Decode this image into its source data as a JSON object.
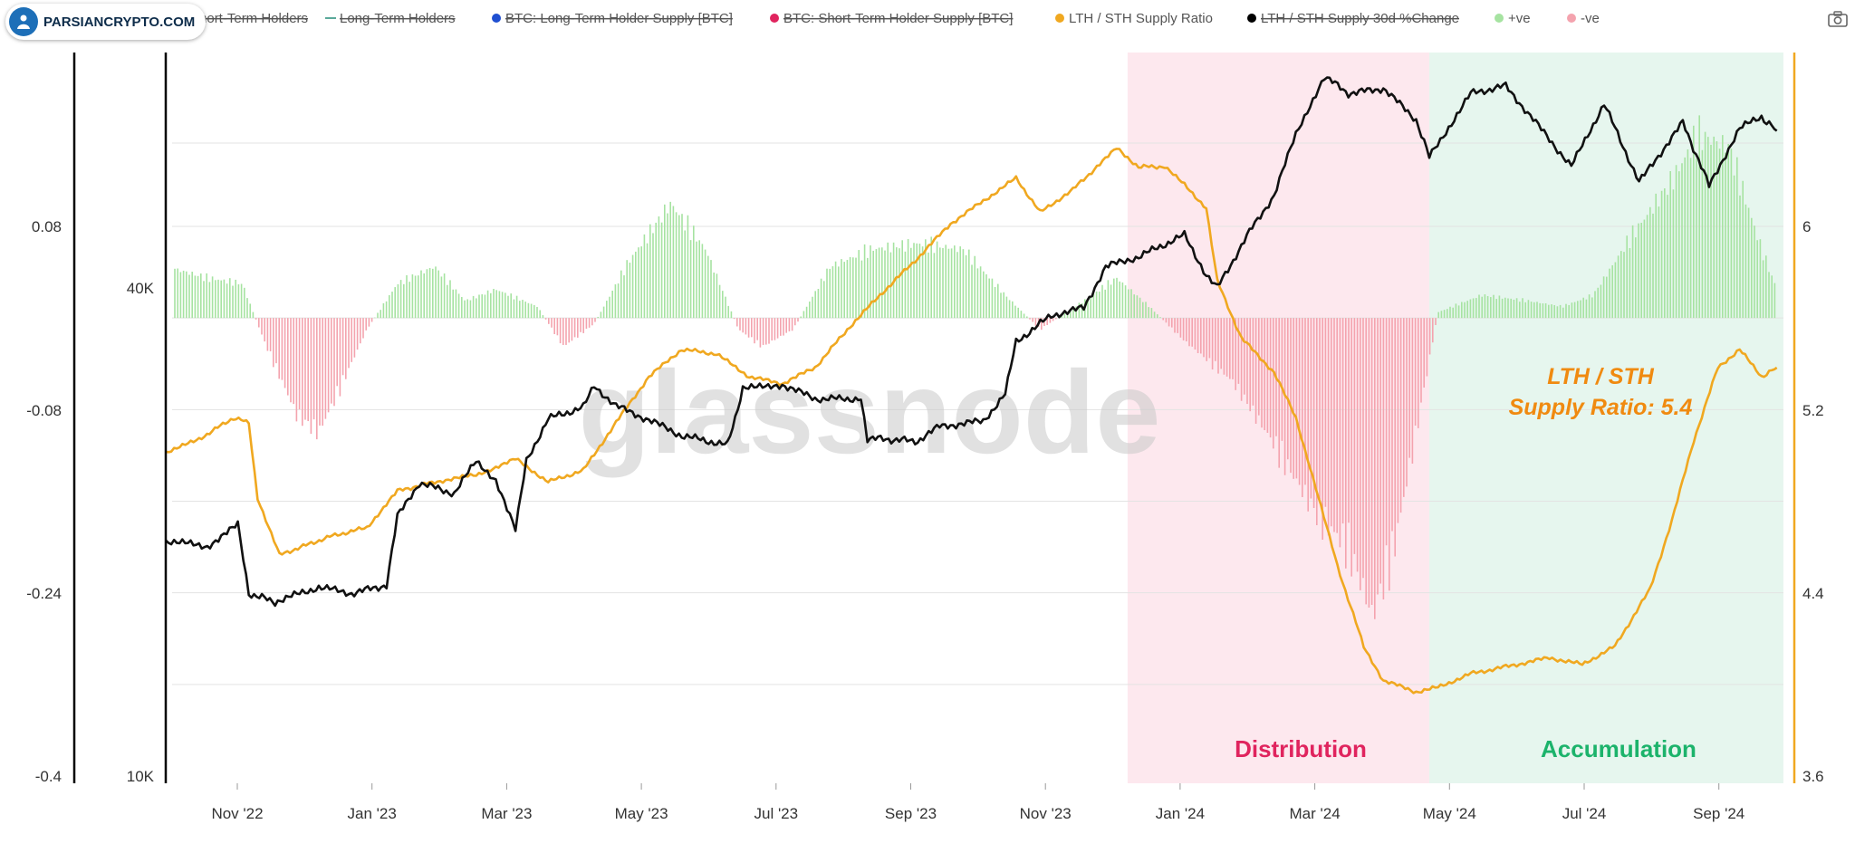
{
  "brand": {
    "label": "PARSIANCRYPTO.COM"
  },
  "watermark": "glassnode",
  "legend": [
    {
      "label": "Short-Term Holders",
      "color": "#cc6677",
      "struck": true,
      "marker": "none"
    },
    {
      "label": "Long-Term Holders",
      "color": "#5aa99a",
      "struck": true,
      "marker": "line"
    },
    {
      "label": "BTC: Long-Term Holder Supply [BTC]",
      "color": "#1f4fd1",
      "struck": true,
      "marker": "dot"
    },
    {
      "label": "BTC: Short-Term Holder Supply [BTC]",
      "color": "#e0245e",
      "struck": true,
      "marker": "dot"
    },
    {
      "label": "LTH / STH Supply Ratio",
      "color": "#f0a820",
      "struck": false,
      "marker": "dot"
    },
    {
      "label": "LTH / STH Supply 30d %Change",
      "color": "#000000",
      "struck": true,
      "marker": "dot"
    },
    {
      "label": "+ve",
      "color": "#a6e3a1",
      "struck": false,
      "marker": "dot"
    },
    {
      "label": "-ve",
      "color": "#f4a3ae",
      "struck": false,
      "marker": "dot"
    }
  ],
  "annotations": {
    "ratio_label_line1": "LTH / STH",
    "ratio_label_line2": "Supply Ratio: 5.4",
    "distribution": "Distribution",
    "accumulation": "Accumulation"
  },
  "colors": {
    "ratio": "#f0a820",
    "price": "#111111",
    "positive": "#a6e3a1",
    "negative": "#f4a3ae",
    "distribution_bg": "#fde8ee",
    "accumulation_bg": "#e6f6ee",
    "distribution_text": "#e0245e",
    "accumulation_text": "#1cb36b",
    "ratio_text": "#f08a10"
  },
  "chart_data": {
    "type": "line",
    "x_ticks": [
      "Nov '22",
      "Jan '23",
      "Mar '23",
      "May '23",
      "Jul '23",
      "Sep '23",
      "Nov '23",
      "Jan '24",
      "Mar '24",
      "May '24",
      "Jul '24",
      "Sep '24"
    ],
    "x_range": [
      "2022-10-01",
      "2024-10-15"
    ],
    "left_axis_change": {
      "ticks": [
        "0.08",
        "-0.08",
        "-0.24",
        "-0.4"
      ],
      "range": [
        -0.4,
        0.08
      ]
    },
    "left_axis_price": {
      "ticks": [
        "40K",
        "10K"
      ],
      "log_scale": true
    },
    "right_axis_ratio": {
      "ticks": [
        "6",
        "5.2",
        "4.4",
        "3.6"
      ],
      "range": [
        3.6,
        6.8
      ]
    },
    "shaded_regions": [
      {
        "label": "Distribution",
        "from": "2023-12-15",
        "to": "2024-05-01"
      },
      {
        "label": "Accumulation",
        "from": "2024-05-01",
        "to": "2024-10-10"
      }
    ],
    "series": [
      {
        "name": "LTH / STH Supply Ratio",
        "axis": "right",
        "points": [
          [
            "2022-10-01",
            5.05
          ],
          [
            "2022-10-15",
            5.1
          ],
          [
            "2022-11-01",
            5.2
          ],
          [
            "2022-11-08",
            5.18
          ],
          [
            "2022-11-12",
            4.85
          ],
          [
            "2022-11-22",
            4.6
          ],
          [
            "2022-12-15",
            4.68
          ],
          [
            "2023-01-01",
            4.72
          ],
          [
            "2023-01-15",
            4.88
          ],
          [
            "2023-02-01",
            4.92
          ],
          [
            "2023-02-20",
            4.95
          ],
          [
            "2023-03-10",
            5.02
          ],
          [
            "2023-03-25",
            4.92
          ],
          [
            "2023-04-10",
            4.97
          ],
          [
            "2023-04-25",
            5.18
          ],
          [
            "2023-05-10",
            5.38
          ],
          [
            "2023-05-25",
            5.5
          ],
          [
            "2023-06-10",
            5.48
          ],
          [
            "2023-06-25",
            5.38
          ],
          [
            "2023-07-10",
            5.35
          ],
          [
            "2023-07-25",
            5.42
          ],
          [
            "2023-08-10",
            5.6
          ],
          [
            "2023-08-25",
            5.75
          ],
          [
            "2023-09-10",
            5.9
          ],
          [
            "2023-09-25",
            6.05
          ],
          [
            "2023-10-10",
            6.15
          ],
          [
            "2023-10-25",
            6.25
          ],
          [
            "2023-11-05",
            6.1
          ],
          [
            "2023-11-20",
            6.2
          ],
          [
            "2023-12-01",
            6.3
          ],
          [
            "2023-12-10",
            6.38
          ],
          [
            "2023-12-20",
            6.3
          ],
          [
            "2024-01-01",
            6.3
          ],
          [
            "2024-01-10",
            6.22
          ],
          [
            "2024-01-20",
            6.12
          ],
          [
            "2024-01-25",
            5.8
          ],
          [
            "2024-02-05",
            5.55
          ],
          [
            "2024-02-20",
            5.4
          ],
          [
            "2024-03-01",
            5.2
          ],
          [
            "2024-03-10",
            4.9
          ],
          [
            "2024-03-20",
            4.55
          ],
          [
            "2024-04-01",
            4.2
          ],
          [
            "2024-04-10",
            4.05
          ],
          [
            "2024-04-25",
            4.0
          ],
          [
            "2024-05-05",
            4.02
          ],
          [
            "2024-05-20",
            4.08
          ],
          [
            "2024-06-10",
            4.12
          ],
          [
            "2024-06-25",
            4.15
          ],
          [
            "2024-07-10",
            4.12
          ],
          [
            "2024-07-25",
            4.2
          ],
          [
            "2024-08-10",
            4.45
          ],
          [
            "2024-08-20",
            4.75
          ],
          [
            "2024-08-30",
            5.1
          ],
          [
            "2024-09-10",
            5.42
          ],
          [
            "2024-09-20",
            5.5
          ],
          [
            "2024-09-30",
            5.38
          ],
          [
            "2024-10-07",
            5.42
          ]
        ]
      },
      {
        "name": "LTH / STH Supply 30d %Change",
        "axis": "left_price",
        "points": [
          [
            "2022-10-01",
            19500
          ],
          [
            "2022-10-20",
            19200
          ],
          [
            "2022-11-03",
            20400
          ],
          [
            "2022-11-08",
            16800
          ],
          [
            "2022-11-20",
            16400
          ],
          [
            "2022-12-10",
            17100
          ],
          [
            "2022-12-25",
            16800
          ],
          [
            "2023-01-10",
            17200
          ],
          [
            "2023-01-15",
            20900
          ],
          [
            "2023-01-25",
            23000
          ],
          [
            "2023-02-10",
            22300
          ],
          [
            "2023-02-20",
            24500
          ],
          [
            "2023-03-01",
            23200
          ],
          [
            "2023-03-10",
            20100
          ],
          [
            "2023-03-15",
            24500
          ],
          [
            "2023-03-25",
            27600
          ],
          [
            "2023-04-10",
            28500
          ],
          [
            "2023-04-15",
            30300
          ],
          [
            "2023-04-25",
            28600
          ],
          [
            "2023-05-10",
            27500
          ],
          [
            "2023-05-25",
            26300
          ],
          [
            "2023-06-15",
            25600
          ],
          [
            "2023-06-22",
            30000
          ],
          [
            "2023-07-10",
            30400
          ],
          [
            "2023-07-25",
            29200
          ],
          [
            "2023-08-15",
            29200
          ],
          [
            "2023-08-18",
            26100
          ],
          [
            "2023-09-10",
            25900
          ],
          [
            "2023-09-20",
            27000
          ],
          [
            "2023-10-10",
            27400
          ],
          [
            "2023-10-20",
            29600
          ],
          [
            "2023-10-25",
            34300
          ],
          [
            "2023-11-10",
            37000
          ],
          [
            "2023-11-25",
            37800
          ],
          [
            "2023-12-05",
            42500
          ],
          [
            "2023-12-20",
            43700
          ],
          [
            "2024-01-10",
            46500
          ],
          [
            "2024-01-20",
            41500
          ],
          [
            "2024-01-25",
            40000
          ],
          [
            "2024-02-10",
            47500
          ],
          [
            "2024-02-20",
            52000
          ],
          [
            "2024-03-01",
            62000
          ],
          [
            "2024-03-14",
            73000
          ],
          [
            "2024-03-25",
            69500
          ],
          [
            "2024-04-10",
            70500
          ],
          [
            "2024-04-25",
            64500
          ],
          [
            "2024-05-01",
            58000
          ],
          [
            "2024-05-20",
            69500
          ],
          [
            "2024-06-05",
            71000
          ],
          [
            "2024-06-25",
            61000
          ],
          [
            "2024-07-05",
            56500
          ],
          [
            "2024-07-20",
            67500
          ],
          [
            "2024-08-05",
            54000
          ],
          [
            "2024-08-25",
            64000
          ],
          [
            "2024-09-06",
            53500
          ],
          [
            "2024-09-20",
            63000
          ],
          [
            "2024-09-30",
            65000
          ],
          [
            "2024-10-07",
            62500
          ]
        ]
      },
      {
        "name": "+ve / -ve",
        "axis": "left_change",
        "histogram": [
          [
            "2022-10-01",
            0.045
          ],
          [
            "2022-10-20",
            0.035
          ],
          [
            "2022-11-05",
            0.03
          ],
          [
            "2022-11-15",
            -0.02
          ],
          [
            "2022-11-30",
            -0.085
          ],
          [
            "2022-12-10",
            -0.1
          ],
          [
            "2022-12-20",
            -0.06
          ],
          [
            "2023-01-01",
            -0.01
          ],
          [
            "2023-01-15",
            0.03
          ],
          [
            "2023-02-01",
            0.045
          ],
          [
            "2023-02-15",
            0.015
          ],
          [
            "2023-03-01",
            0.025
          ],
          [
            "2023-03-20",
            0.01
          ],
          [
            "2023-04-01",
            -0.025
          ],
          [
            "2023-04-15",
            -0.005
          ],
          [
            "2023-05-01",
            0.05
          ],
          [
            "2023-05-20",
            0.1
          ],
          [
            "2023-06-05",
            0.06
          ],
          [
            "2023-06-20",
            -0.01
          ],
          [
            "2023-07-01",
            -0.025
          ],
          [
            "2023-07-15",
            -0.01
          ],
          [
            "2023-08-01",
            0.045
          ],
          [
            "2023-08-20",
            0.06
          ],
          [
            "2023-09-10",
            0.065
          ],
          [
            "2023-10-01",
            0.06
          ],
          [
            "2023-10-20",
            0.02
          ],
          [
            "2023-11-05",
            -0.01
          ],
          [
            "2023-11-25",
            0.015
          ],
          [
            "2023-12-10",
            0.035
          ],
          [
            "2023-12-25",
            0.01
          ],
          [
            "2024-01-10",
            -0.02
          ],
          [
            "2024-02-01",
            -0.055
          ],
          [
            "2024-02-20",
            -0.11
          ],
          [
            "2024-03-10",
            -0.17
          ],
          [
            "2024-03-25",
            -0.2
          ],
          [
            "2024-04-05",
            -0.26
          ],
          [
            "2024-04-15",
            -0.2
          ],
          [
            "2024-04-25",
            -0.1
          ],
          [
            "2024-05-05",
            0.005
          ],
          [
            "2024-05-25",
            0.02
          ],
          [
            "2024-06-15",
            0.015
          ],
          [
            "2024-07-01",
            0.01
          ],
          [
            "2024-07-15",
            0.02
          ],
          [
            "2024-08-01",
            0.07
          ],
          [
            "2024-08-20",
            0.12
          ],
          [
            "2024-09-01",
            0.16
          ],
          [
            "2024-09-15",
            0.15
          ],
          [
            "2024-09-30",
            0.06
          ],
          [
            "2024-10-07",
            0.025
          ]
        ]
      }
    ]
  }
}
